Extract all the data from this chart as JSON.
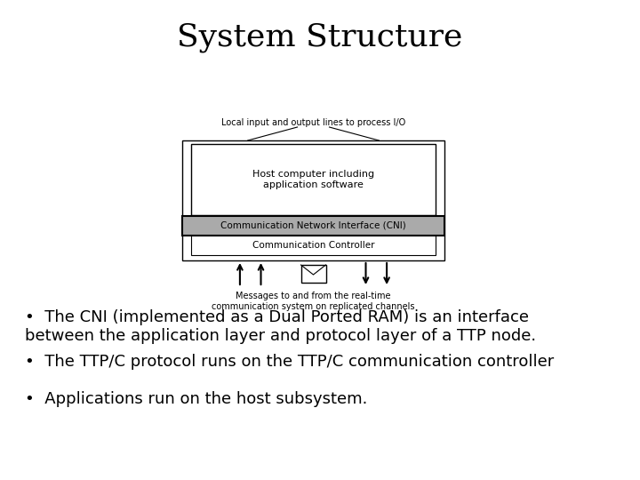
{
  "title": "System Structure",
  "title_fontsize": 26,
  "title_fontweight": "normal",
  "background_color": "#ffffff",
  "bullet_points": [
    "The CNI (implemented as a Dual Ported RAM) is an interface\nbetween the application layer and protocol layer of a TTP node.",
    "The TTP/C protocol runs on the TTP/C communication controller",
    "Applications run on the host subsystem."
  ],
  "bullet_fontsize": 13,
  "diagram": {
    "host_label": "Host computer including\napplication software",
    "cni_label": "Communication Network Interface (CNI)",
    "comm_label": "Communication Controller",
    "top_label": "Local input and output lines to process I/O",
    "bottom_label": "Messages to and from the real-time\ncommunication system on replicated channels"
  }
}
